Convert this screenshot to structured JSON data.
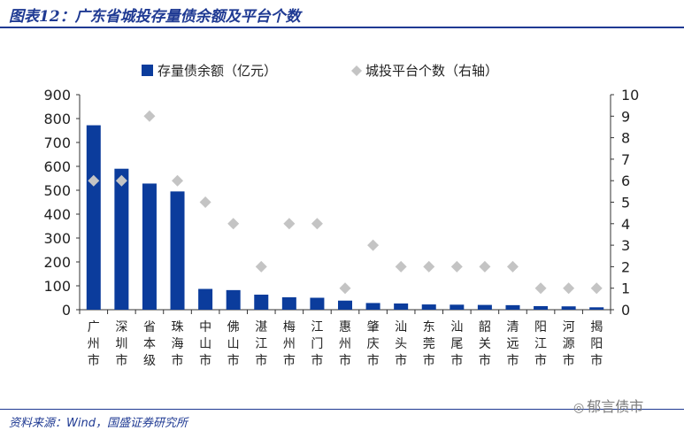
{
  "title": "图表12：广东省城投存量债余额及平台个数",
  "source": "资料来源：Wind，国盛证券研究所",
  "watermark": "郁言债市",
  "colors": {
    "bar": "#0b3c9c",
    "marker": "#c4c4c4",
    "accent": "#1f3a93"
  },
  "chart_data": {
    "type": "bar",
    "categories": [
      "广州市",
      "深圳市",
      "省本级",
      "珠海市",
      "中山市",
      "佛山市",
      "湛江市",
      "梅州市",
      "江门市",
      "惠州市",
      "肇庆市",
      "汕头市",
      "东莞市",
      "汕尾市",
      "韶关市",
      "清远市",
      "阳江市",
      "河源市",
      "揭阳市"
    ],
    "series": [
      {
        "name": "存量债余额（亿元）",
        "type": "bar",
        "axis": "left",
        "values": [
          772,
          590,
          528,
          495,
          87,
          82,
          63,
          52,
          50,
          38,
          28,
          26,
          22,
          21,
          20,
          19,
          15,
          14,
          10
        ]
      },
      {
        "name": "城投平台个数（右轴）",
        "type": "scatter",
        "axis": "right",
        "values": [
          6,
          6,
          9,
          6,
          5,
          4,
          2,
          4,
          4,
          1,
          3,
          2,
          2,
          2,
          2,
          2,
          1,
          1,
          1
        ]
      }
    ],
    "ylim": [
      0,
      900
    ],
    "yticks": [
      0,
      100,
      200,
      300,
      400,
      500,
      600,
      700,
      800,
      900
    ],
    "y2lim": [
      0,
      10
    ],
    "y2ticks": [
      0,
      1,
      2,
      3,
      4,
      5,
      6,
      7,
      8,
      9,
      10
    ],
    "legend": "top",
    "grid": false
  }
}
